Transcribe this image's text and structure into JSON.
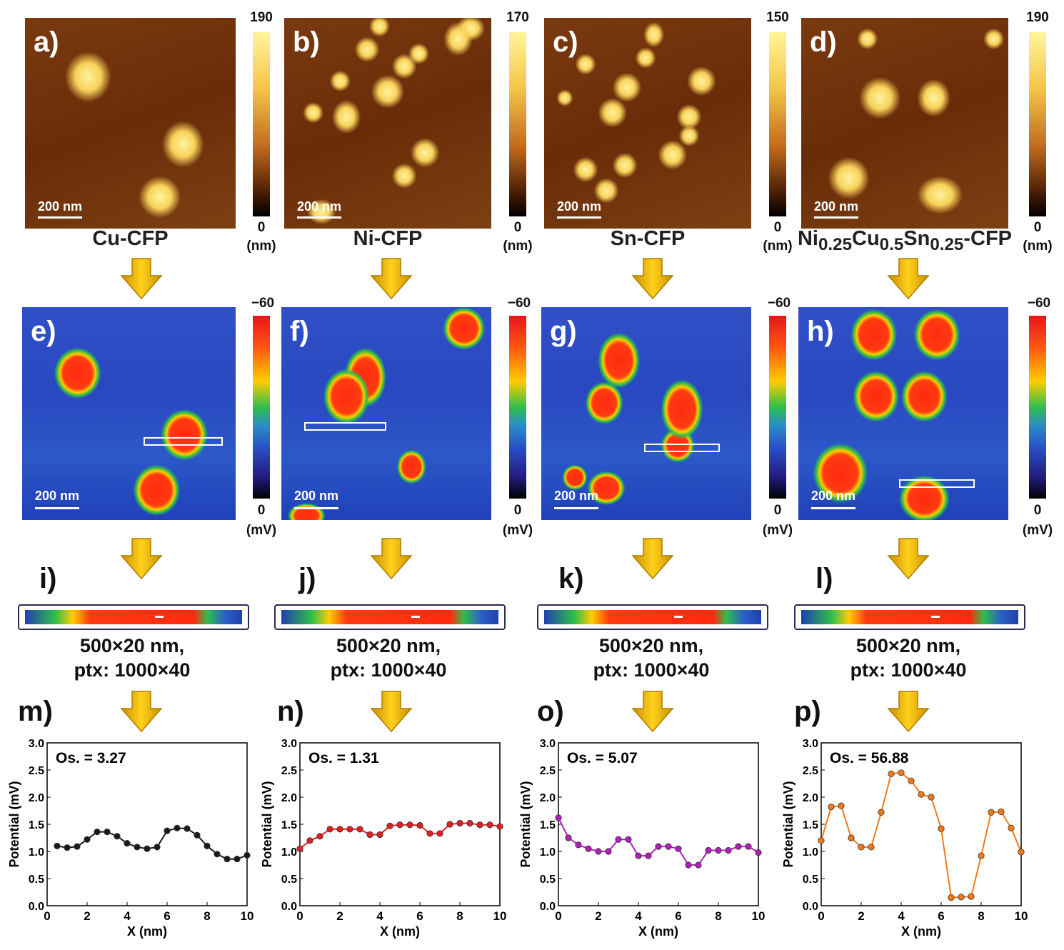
{
  "columns": [
    {
      "afm_label": "a)",
      "kpfm_label": "e)",
      "strip_label": "i)",
      "plot_label": "m)",
      "material_html": "Cu-CFP",
      "scale_text": "200 nm",
      "height_max": "190",
      "height_min": "0",
      "height_unit": "(nm)",
      "potential_max": "−60",
      "potential_min": "0",
      "potential_unit": "(mV)",
      "scan_size": "500×20 nm,",
      "pixels": "ptx: 1000×40",
      "os_text": "Os. = 3.27",
      "line_color": "#1a1a1a"
    },
    {
      "afm_label": "b)",
      "kpfm_label": "f)",
      "strip_label": "j)",
      "plot_label": "n)",
      "material_html": "Ni-CFP",
      "scale_text": "200 nm",
      "height_max": "170",
      "height_min": "0",
      "height_unit": "(nm)",
      "potential_max": "−60",
      "potential_min": "0",
      "potential_unit": "(mV)",
      "scan_size": "500×20 nm,",
      "pixels": "ptx: 1000×40",
      "os_text": "Os. = 1.31",
      "line_color": "#e02020"
    },
    {
      "afm_label": "c)",
      "kpfm_label": "g)",
      "strip_label": "k)",
      "plot_label": "o)",
      "material_html": "Sn-CFP",
      "scale_text": "200 nm",
      "height_max": "150",
      "height_min": "0",
      "height_unit": "(nm)",
      "potential_max": "−60",
      "potential_min": "0",
      "potential_unit": "(mV)",
      "scan_size": "500×20 nm,",
      "pixels": "ptx: 1000×40",
      "os_text": "Os. = 5.07",
      "line_color": "#b020b8"
    },
    {
      "afm_label": "d)",
      "kpfm_label": "h)",
      "strip_label": "l)",
      "plot_label": "p)",
      "material_html": "Ni<sub>0.25</sub>Cu<sub>0.5</sub>Sn<sub>0.25</sub>-CFP",
      "scale_text": "200 nm",
      "height_max": "190",
      "height_min": "0",
      "height_unit": "(nm)",
      "potential_max": "−60",
      "potential_min": "0",
      "potential_unit": "(mV)",
      "scan_size": "500×20 nm,",
      "pixels": "ptx: 1000×40",
      "os_text": "Os. = 56.88",
      "line_color": "#f07a1a"
    }
  ],
  "chart_data": [
    {
      "type": "line",
      "xlabel": "X (nm)",
      "ylabel": "Potential (mV)",
      "xlim": [
        0,
        10
      ],
      "ylim": [
        0,
        3.0
      ],
      "xticks": [
        "0",
        "2",
        "4",
        "6",
        "8",
        "10"
      ],
      "yticks": [
        "0.0",
        "0.5",
        "1.0",
        "1.5",
        "2.0",
        "2.5",
        "3.0"
      ],
      "x": [
        0.5,
        1.0,
        1.5,
        2.0,
        2.5,
        3.0,
        3.5,
        4.0,
        4.5,
        5.0,
        5.5,
        6.0,
        6.5,
        7.0,
        7.5,
        8.0,
        8.5,
        9.0,
        9.5,
        10.0
      ],
      "y": [
        1.1,
        1.07,
        1.09,
        1.22,
        1.36,
        1.36,
        1.28,
        1.15,
        1.08,
        1.05,
        1.08,
        1.38,
        1.43,
        1.42,
        1.3,
        1.1,
        0.95,
        0.86,
        0.86,
        0.93
      ]
    },
    {
      "type": "line",
      "xlabel": "X (nm)",
      "ylabel": "Potential (mV)",
      "xlim": [
        0,
        10
      ],
      "ylim": [
        0,
        3.0
      ],
      "xticks": [
        "0",
        "2",
        "4",
        "6",
        "8",
        "10"
      ],
      "yticks": [
        "0.0",
        "0.5",
        "1.0",
        "1.5",
        "2.0",
        "2.5",
        "3.0"
      ],
      "x": [
        0.0,
        0.5,
        1.0,
        1.5,
        2.0,
        2.5,
        3.0,
        3.5,
        4.0,
        4.5,
        5.0,
        5.5,
        6.0,
        6.5,
        7.0,
        7.5,
        8.0,
        8.5,
        9.0,
        9.5,
        10.0
      ],
      "y": [
        1.05,
        1.2,
        1.28,
        1.41,
        1.41,
        1.41,
        1.41,
        1.31,
        1.31,
        1.47,
        1.49,
        1.49,
        1.48,
        1.33,
        1.33,
        1.5,
        1.52,
        1.52,
        1.49,
        1.49,
        1.46
      ]
    },
    {
      "type": "line",
      "xlabel": "X (nm)",
      "ylabel": "Potential (mV)",
      "xlim": [
        0,
        10
      ],
      "ylim": [
        0,
        3.0
      ],
      "xticks": [
        "0",
        "2",
        "4",
        "6",
        "8",
        "10"
      ],
      "yticks": [
        "0.0",
        "0.5",
        "1.0",
        "1.5",
        "2.0",
        "2.5",
        "3.0"
      ],
      "x": [
        0.0,
        0.5,
        1.0,
        1.5,
        2.0,
        2.5,
        3.0,
        3.5,
        4.0,
        4.5,
        5.0,
        5.5,
        6.0,
        6.5,
        7.0,
        7.5,
        8.0,
        8.5,
        9.0,
        9.5,
        10.0
      ],
      "y": [
        1.62,
        1.25,
        1.12,
        1.05,
        1.0,
        1.0,
        1.22,
        1.22,
        0.92,
        0.92,
        1.09,
        1.09,
        1.05,
        0.75,
        0.75,
        1.02,
        1.02,
        1.02,
        1.09,
        1.09,
        0.98
      ]
    },
    {
      "type": "line",
      "xlabel": "X (nm)",
      "ylabel": "Potential (mV)",
      "xlim": [
        0,
        10
      ],
      "ylim": [
        0,
        3.0
      ],
      "xticks": [
        "0",
        "2",
        "4",
        "6",
        "8",
        "10"
      ],
      "yticks": [
        "0.0",
        "0.5",
        "1.0",
        "1.5",
        "2.0",
        "2.5",
        "3.0"
      ],
      "x": [
        0.0,
        0.5,
        1.0,
        1.5,
        2.0,
        2.5,
        3.0,
        3.5,
        4.0,
        4.5,
        5.0,
        5.5,
        6.0,
        6.5,
        7.0,
        7.5,
        8.0,
        8.5,
        9.0,
        9.5,
        10.0
      ],
      "y": [
        1.2,
        1.82,
        1.84,
        1.25,
        1.08,
        1.08,
        1.72,
        2.43,
        2.45,
        2.3,
        2.05,
        2.0,
        1.42,
        0.15,
        0.16,
        0.17,
        0.92,
        1.72,
        1.73,
        1.43,
        0.99
      ]
    }
  ]
}
